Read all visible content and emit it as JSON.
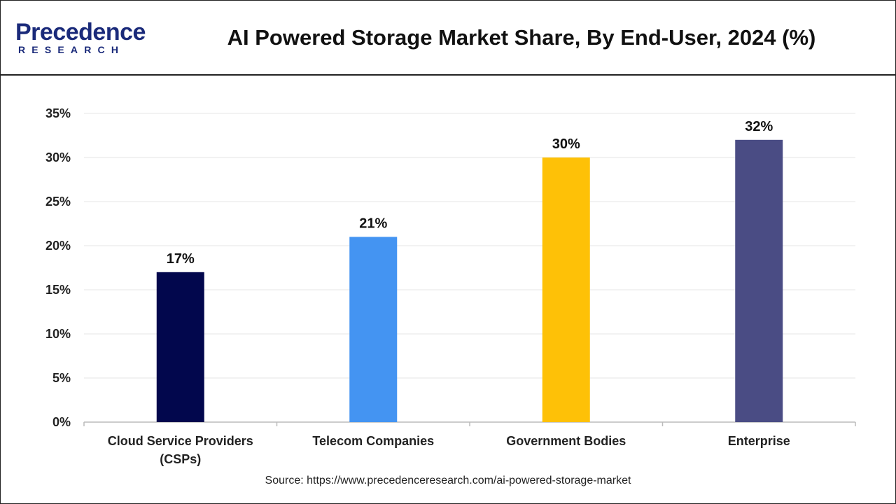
{
  "header": {
    "logo_top": "Precedence",
    "logo_bottom": "RESEARCH",
    "title": "AI Powered Storage Market Share, By End-User, 2024 (%)"
  },
  "source": "Source: https://www.precedenceresearch.com/ai-powered-storage-market",
  "colors": {
    "logo": "#1a2a7a",
    "grid": "#e6e6e6",
    "axis": "#bbbbbb"
  },
  "chart_data": {
    "type": "bar",
    "title": "AI Powered Storage Market Share, By End-User, 2024 (%)",
    "xlabel": "",
    "ylabel": "",
    "categories": [
      [
        "Cloud Service Providers",
        "(CSPs)"
      ],
      [
        "Telecom Companies"
      ],
      [
        "Government Bodies"
      ],
      [
        "Enterprise"
      ]
    ],
    "values": [
      17,
      21,
      30,
      32
    ],
    "value_labels": [
      "17%",
      "21%",
      "30%",
      "32%"
    ],
    "bar_colors": [
      "#02074d",
      "#4494f2",
      "#fec107",
      "#4a4c84"
    ],
    "ylim": [
      0,
      35
    ],
    "yticks": [
      0,
      5,
      10,
      15,
      20,
      25,
      30,
      35
    ],
    "ytick_labels": [
      "0%",
      "5%",
      "10%",
      "15%",
      "20%",
      "25%",
      "30%",
      "35%"
    ],
    "grid": true,
    "legend": "none"
  }
}
